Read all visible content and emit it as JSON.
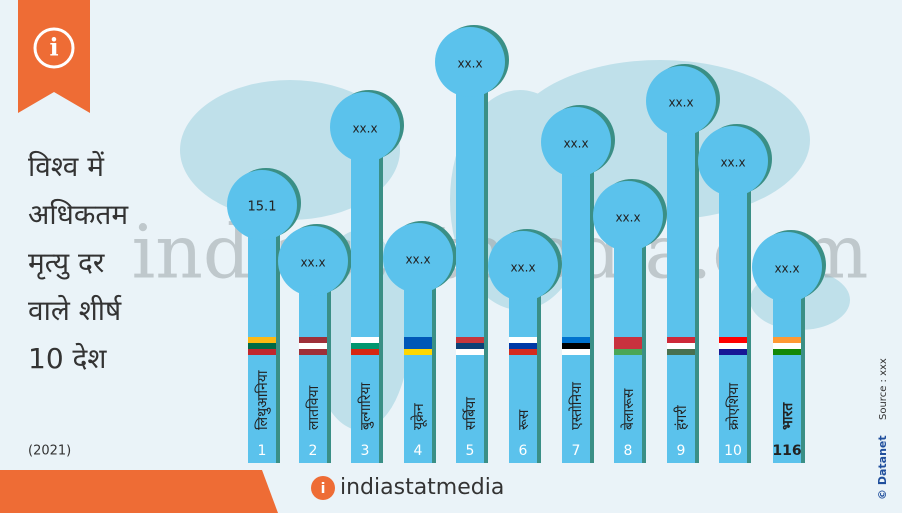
{
  "header": {
    "title_lines": [
      "विश्व में",
      "अधिकतम",
      "मृत्यु दर",
      "वाले शीर्ष",
      "10 देश"
    ],
    "year": "(2021)"
  },
  "items": [
    {
      "name": "लिथुआनिया",
      "value": 15.1,
      "rank": 1
    },
    {
      "name": "लातविया",
      "value": "xx.x",
      "rank": 2
    },
    {
      "name": "बुल्गारिया",
      "value": "xx.x",
      "rank": 3
    },
    {
      "name": "यूक्रेन",
      "value": "xx.x",
      "rank": 4
    },
    {
      "name": "सर्बिया",
      "value": "xx.x",
      "rank": 5
    },
    {
      "name": "रूस",
      "value": "xx.x",
      "rank": 6
    },
    {
      "name": "एस्तोनिया",
      "value": "xx.x",
      "rank": 7
    },
    {
      "name": "बेलारूस",
      "value": "xx.x",
      "rank": 8
    },
    {
      "name": "हंगरी",
      "value": "xx.x",
      "rank": 9
    },
    {
      "name": "क्रोएशिया",
      "value": "xx.x",
      "rank": 10
    },
    {
      "name": "भारत",
      "value": "xx.x",
      "rank": 116
    }
  ],
  "watermark": "indiastatmedia.com",
  "footer": {
    "logo_text": "indiastatmedia",
    "brand": "© Datanet",
    "source": "Source : xxx"
  }
}
